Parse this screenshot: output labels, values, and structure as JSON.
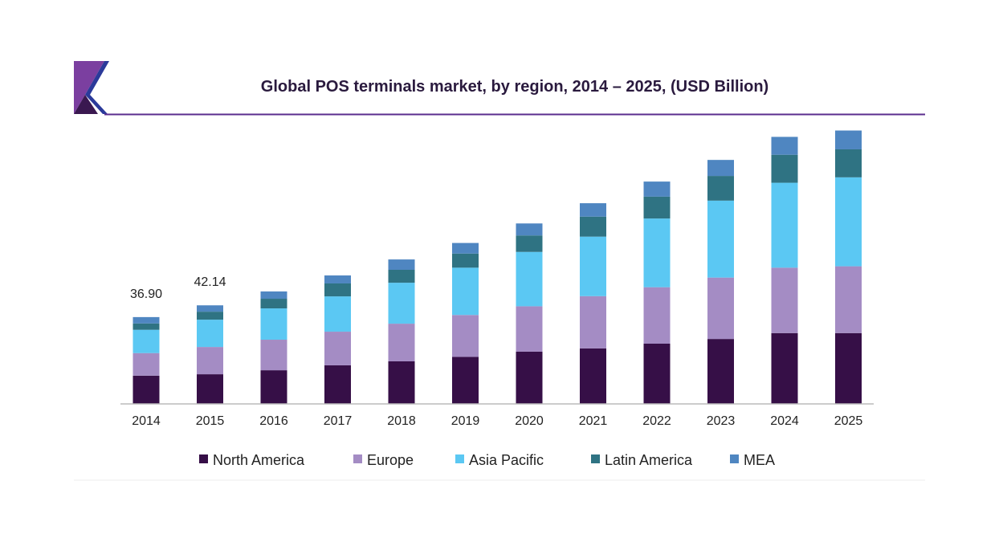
{
  "chart_data": {
    "type": "bar",
    "stacked": true,
    "title": "Global POS terminals market, by region, 2014 – 2025, (USD Billion)",
    "xlabel": "",
    "ylabel": "",
    "ylim": [
      0,
      120
    ],
    "grid": false,
    "legend_placement": "bottom",
    "categories": [
      "2014",
      "2015",
      "2016",
      "2017",
      "2018",
      "2019",
      "2020",
      "2021",
      "2022",
      "2023",
      "2024",
      "2025"
    ],
    "series": [
      {
        "name": "North America",
        "color": "#360f47",
        "values": [
          12.0,
          12.6,
          14.3,
          16.4,
          18.1,
          20.0,
          22.2,
          23.6,
          25.6,
          27.6,
          30.1,
          30.1
        ]
      },
      {
        "name": "Europe",
        "color": "#a48cc4",
        "values": [
          9.6,
          11.6,
          13.0,
          14.3,
          16.0,
          17.8,
          19.3,
          22.2,
          24.0,
          26.1,
          27.8,
          28.4
        ]
      },
      {
        "name": "Asia Pacific",
        "color": "#5bc8f3",
        "values": [
          9.9,
          11.6,
          13.3,
          15.0,
          17.4,
          20.1,
          23.1,
          25.3,
          29.2,
          32.7,
          36.1,
          37.8
        ]
      },
      {
        "name": "Latin America",
        "color": "#2f7383",
        "values": [
          2.7,
          3.4,
          4.1,
          5.5,
          5.5,
          6.0,
          7.0,
          8.5,
          9.3,
          10.5,
          11.9,
          11.9
        ]
      },
      {
        "name": "MEA",
        "color": "#4f86c1",
        "values": [
          2.7,
          2.7,
          3.1,
          3.4,
          4.4,
          4.5,
          5.1,
          5.7,
          6.4,
          6.8,
          7.6,
          8.0
        ]
      }
    ],
    "annotations": [
      {
        "category": "2014",
        "text": "36.90"
      },
      {
        "category": "2015",
        "text": "42.14"
      }
    ]
  },
  "colors": {
    "title": "#2a1a3e",
    "accent_line": "#5b2d8e",
    "logo_light": "#7b3fa0",
    "logo_dark": "#3a1850",
    "logo_blue": "#2b3a9a"
  }
}
